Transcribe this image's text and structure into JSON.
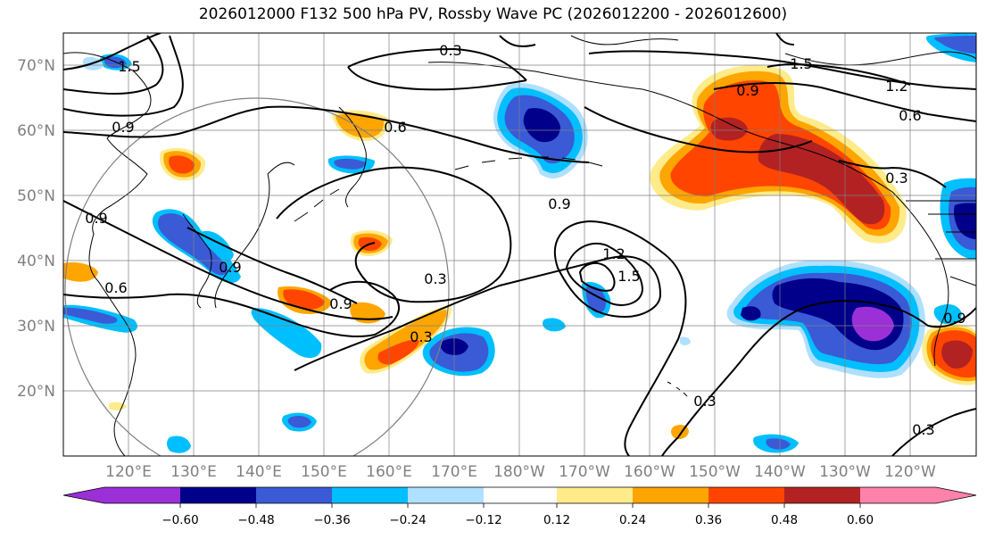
{
  "title": "2026012000 F132 500 hPa PV, Rossby Wave PC (2026012200 - 2026012600)",
  "map": {
    "projection": "PlateCarree (central 180)",
    "lon_range": [
      110,
      250
    ],
    "lat_range": [
      10,
      75
    ],
    "lat_labels": [
      "70°N",
      "60°N",
      "50°N",
      "40°N",
      "30°N",
      "20°N"
    ],
    "lon_labels": [
      "120°E",
      "130°E",
      "140°E",
      "150°E",
      "160°E",
      "170°E",
      "180°W",
      "170°W",
      "160°W",
      "150°W",
      "140°W",
      "130°W",
      "120°W"
    ],
    "grid": true,
    "contour_labels": [
      "0.3",
      "0.3",
      "0.3",
      "0.3",
      "0.3",
      "0.3",
      "0.6",
      "0.6",
      "0.6",
      "0.9",
      "0.9",
      "0.9",
      "0.9",
      "0.9",
      "0.9",
      "0.9",
      "1.2",
      "1.5",
      "1.5",
      "1.2",
      "1.5"
    ],
    "colors": {
      "land_outline": "#000000",
      "grid": "#808080",
      "circle": "#808080",
      "contour": "#000000"
    }
  },
  "colorbar": {
    "ticks": [
      "−0.60",
      "−0.48",
      "−0.36",
      "−0.24",
      "−0.12",
      "0.12",
      "0.24",
      "0.36",
      "0.48",
      "0.60"
    ],
    "colors": [
      "#9b30d6",
      "#00008b",
      "#3a5ad6",
      "#00bfff",
      "#b0e0ff",
      "#ffffff",
      "#ffeb8a",
      "#ffa500",
      "#ff4500",
      "#b22222",
      "#ff82ab"
    ],
    "extend": "both"
  }
}
